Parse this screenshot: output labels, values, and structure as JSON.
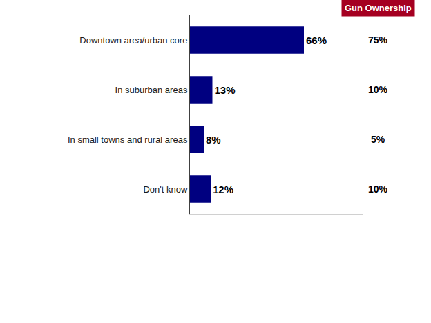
{
  "chart_data": {
    "type": "bar",
    "orientation": "horizontal",
    "categories": [
      "Downtown area/urban core",
      "In suburban areas",
      "In small towns and rural areas",
      "Don't know"
    ],
    "values": [
      66,
      13,
      8,
      12
    ],
    "value_labels": [
      "66%",
      "13%",
      "8%",
      "12%"
    ],
    "data_labels": true,
    "color": "#000080",
    "xlim": [
      0,
      100
    ],
    "xticks": [],
    "tick_labels": "y",
    "grid": false,
    "gun_ownership": {
      "title": "Gun Ownership",
      "values": [
        75,
        10,
        5,
        10
      ],
      "value_labels": [
        "75%",
        "10%",
        "5%",
        "10%"
      ],
      "color": "#a50021"
    }
  }
}
